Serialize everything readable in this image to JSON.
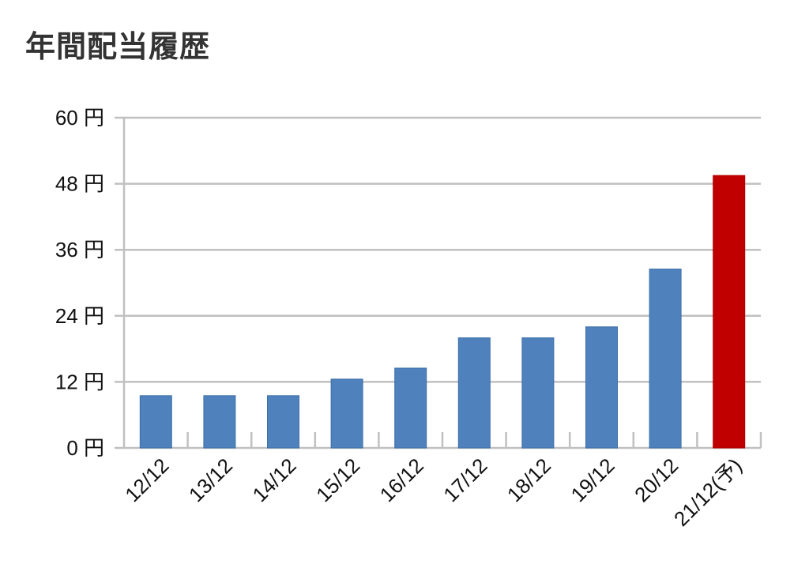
{
  "page": {
    "title": "年間配当履歴"
  },
  "chart_data": {
    "type": "bar",
    "title": "年間配当履歴",
    "xlabel": "",
    "ylabel": "",
    "categories": [
      "12/12",
      "13/12",
      "14/12",
      "15/12",
      "16/12",
      "17/12",
      "18/12",
      "19/12",
      "20/12",
      "21/12(予)"
    ],
    "values": [
      9.5,
      9.5,
      9.5,
      12.5,
      14.5,
      20,
      20,
      22,
      32.5,
      49.5
    ],
    "colors": [
      "#4f81bd",
      "#4f81bd",
      "#4f81bd",
      "#4f81bd",
      "#4f81bd",
      "#4f81bd",
      "#4f81bd",
      "#4f81bd",
      "#4f81bd",
      "#c00000"
    ],
    "ylim": [
      0,
      60
    ],
    "yticks": [
      0,
      12,
      24,
      36,
      48,
      60
    ],
    "ytick_labels": [
      "0 円",
      "12 円",
      "24 円",
      "36 円",
      "48 円",
      "60 円"
    ],
    "grid": true,
    "legend": null,
    "annotations": []
  },
  "colors": {
    "bar": "#4f81bd",
    "bar_forecast": "#c00000",
    "grid": "#c0c0c0",
    "text": "#111111"
  }
}
